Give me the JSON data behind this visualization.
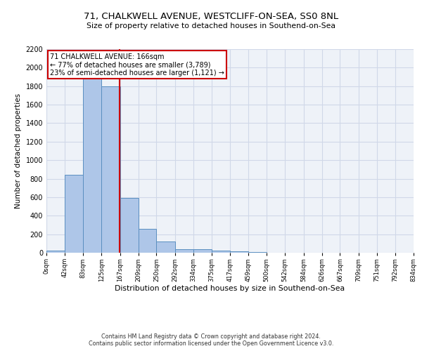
{
  "title": "71, CHALKWELL AVENUE, WESTCLIFF-ON-SEA, SS0 8NL",
  "subtitle": "Size of property relative to detached houses in Southend-on-Sea",
  "xlabel": "Distribution of detached houses by size in Southend-on-Sea",
  "ylabel": "Number of detached properties",
  "footer_line1": "Contains HM Land Registry data © Crown copyright and database right 2024.",
  "footer_line2": "Contains public sector information licensed under the Open Government Licence v3.0.",
  "annotation_title": "71 CHALKWELL AVENUE: 166sqm",
  "annotation_line1": "← 77% of detached houses are smaller (3,789)",
  "annotation_line2": "23% of semi-detached houses are larger (1,121) →",
  "property_line_x": 166,
  "bar_edges": [
    0,
    42,
    83,
    125,
    167,
    209,
    250,
    292,
    334,
    375,
    417,
    459,
    500,
    542,
    584,
    626,
    667,
    709,
    751,
    792,
    834
  ],
  "bar_heights": [
    20,
    840,
    1900,
    1800,
    590,
    260,
    120,
    40,
    40,
    25,
    15,
    5,
    2,
    1,
    0,
    0,
    0,
    0,
    0,
    0
  ],
  "bar_color": "#aec6e8",
  "bar_edge_color": "#5a8fc0",
  "grid_color": "#d0d8e8",
  "property_line_color": "#cc0000",
  "annotation_box_color": "#cc0000",
  "background_color": "#eef2f8",
  "ylim": [
    0,
    2200
  ],
  "yticks": [
    0,
    200,
    400,
    600,
    800,
    1000,
    1200,
    1400,
    1600,
    1800,
    2000,
    2200
  ],
  "title_fontsize": 9.5,
  "subtitle_fontsize": 7.8,
  "xlabel_fontsize": 7.8,
  "ylabel_fontsize": 7.5,
  "ytick_fontsize": 7.0,
  "xtick_fontsize": 6.0,
  "annotation_fontsize": 7.0,
  "footer_fontsize": 5.8
}
